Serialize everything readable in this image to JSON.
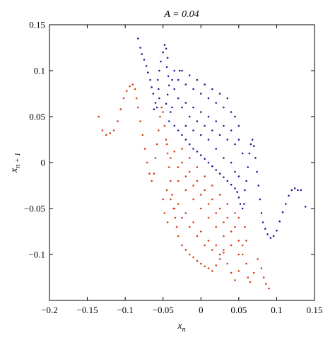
{
  "chart_data": {
    "type": "scatter",
    "title": "A = 0.04",
    "xlabel": "x_n",
    "ylabel": "x_{n+1}",
    "xlim": [
      -0.2,
      0.15
    ],
    "ylim": [
      -0.15,
      0.15
    ],
    "x_ticks": [
      -0.2,
      -0.15,
      -0.1,
      -0.05,
      0,
      0.05,
      0.1,
      0.15
    ],
    "x_tick_labels": [
      "−0.2",
      "−0.15",
      "−0.1",
      "−0.05",
      "0",
      "0.05",
      "0.1",
      "0.15"
    ],
    "y_ticks": [
      -0.1,
      -0.05,
      0,
      0.05,
      0.1,
      0.15
    ],
    "y_tick_labels": [
      "−0.1",
      "−0.05",
      "0",
      "0.05",
      "0.1",
      "0.15"
    ],
    "grid": false,
    "legend": "none",
    "series": [
      {
        "color": "#1c1c9c",
        "points": [
          [
            -0.083,
            0.135
          ],
          [
            -0.08,
            0.125
          ],
          [
            -0.078,
            0.118
          ],
          [
            -0.075,
            0.112
          ],
          [
            -0.072,
            0.105
          ],
          [
            -0.07,
            0.098
          ],
          [
            -0.067,
            0.09
          ],
          [
            -0.065,
            0.082
          ],
          [
            -0.063,
            0.075
          ],
          [
            -0.06,
            0.065
          ],
          [
            -0.058,
            0.06
          ],
          [
            -0.062,
            0.058
          ],
          [
            -0.055,
            0.07
          ],
          [
            -0.056,
            0.08
          ],
          [
            -0.057,
            0.09
          ],
          [
            -0.055,
            0.1
          ],
          [
            -0.053,
            0.11
          ],
          [
            -0.05,
            0.12
          ],
          [
            -0.048,
            0.128
          ],
          [
            -0.046,
            0.124
          ],
          [
            -0.044,
            0.114
          ],
          [
            -0.045,
            0.104
          ],
          [
            -0.043,
            0.094
          ],
          [
            -0.042,
            0.084
          ],
          [
            -0.044,
            0.074
          ],
          [
            -0.046,
            0.064
          ],
          [
            -0.04,
            0.055
          ],
          [
            -0.038,
            0.06
          ],
          [
            -0.042,
            0.045
          ],
          [
            -0.035,
            0.04
          ],
          [
            -0.03,
            0.035
          ],
          [
            -0.025,
            0.03
          ],
          [
            -0.02,
            0.025
          ],
          [
            -0.015,
            0.02
          ],
          [
            -0.01,
            0.015
          ],
          [
            -0.005,
            0.012
          ],
          [
            0.0,
            0.008
          ],
          [
            0.005,
            0.004
          ],
          [
            0.01,
            0.0
          ],
          [
            0.015,
            -0.004
          ],
          [
            0.02,
            -0.008
          ],
          [
            0.025,
            -0.012
          ],
          [
            0.03,
            -0.016
          ],
          [
            0.035,
            -0.02
          ],
          [
            0.04,
            -0.024
          ],
          [
            0.045,
            -0.028
          ],
          [
            0.048,
            -0.032
          ],
          [
            0.05,
            -0.038
          ],
          [
            0.052,
            -0.045
          ],
          [
            0.055,
            -0.05
          ],
          [
            0.057,
            -0.045
          ],
          [
            0.058,
            -0.03
          ],
          [
            0.06,
            -0.02
          ],
          [
            0.062,
            -0.005
          ],
          [
            0.064,
            0.01
          ],
          [
            0.066,
            0.02
          ],
          [
            0.068,
            0.025
          ],
          [
            0.07,
            0.018
          ],
          [
            0.072,
            0.005
          ],
          [
            0.074,
            -0.01
          ],
          [
            0.076,
            -0.025
          ],
          [
            0.078,
            -0.04
          ],
          [
            0.08,
            -0.055
          ],
          [
            0.082,
            -0.065
          ],
          [
            0.085,
            -0.072
          ],
          [
            0.088,
            -0.078
          ],
          [
            0.092,
            -0.082
          ],
          [
            0.096,
            -0.08
          ],
          [
            0.1,
            -0.074
          ],
          [
            0.104,
            -0.064
          ],
          [
            0.108,
            -0.054
          ],
          [
            0.112,
            -0.045
          ],
          [
            0.116,
            -0.036
          ],
          [
            0.12,
            -0.03
          ],
          [
            0.124,
            -0.028
          ],
          [
            0.128,
            -0.03
          ],
          [
            0.132,
            -0.03
          ],
          [
            0.138,
            -0.048
          ],
          [
            -0.035,
            0.1
          ],
          [
            -0.03,
            0.09
          ],
          [
            -0.025,
            0.1
          ],
          [
            -0.02,
            0.085
          ],
          [
            -0.015,
            0.095
          ],
          [
            -0.01,
            0.08
          ],
          [
            -0.005,
            0.09
          ],
          [
            0.0,
            0.075
          ],
          [
            0.005,
            0.085
          ],
          [
            0.01,
            0.07
          ],
          [
            0.015,
            0.08
          ],
          [
            0.02,
            0.065
          ],
          [
            0.025,
            0.075
          ],
          [
            0.03,
            0.06
          ],
          [
            0.035,
            0.07
          ],
          [
            0.04,
            0.055
          ],
          [
            0.045,
            0.05
          ],
          [
            0.05,
            0.04
          ],
          [
            -0.03,
            0.07
          ],
          [
            -0.025,
            0.06
          ],
          [
            -0.02,
            0.065
          ],
          [
            -0.015,
            0.05
          ],
          [
            -0.01,
            0.06
          ],
          [
            -0.005,
            0.045
          ],
          [
            0.0,
            0.055
          ],
          [
            0.005,
            0.04
          ],
          [
            0.01,
            0.05
          ],
          [
            0.015,
            0.035
          ],
          [
            0.02,
            0.045
          ],
          [
            0.025,
            0.03
          ],
          [
            0.03,
            0.04
          ],
          [
            0.035,
            0.025
          ],
          [
            0.04,
            0.035
          ],
          [
            0.045,
            0.02
          ],
          [
            0.05,
            0.025
          ],
          [
            0.055,
            0.01
          ],
          [
            -0.02,
            0.04
          ],
          [
            -0.01,
            0.035
          ],
          [
            0.0,
            0.03
          ],
          [
            0.01,
            0.025
          ],
          [
            0.02,
            0.015
          ],
          [
            0.03,
            0.005
          ],
          [
            0.04,
            0.0
          ],
          [
            0.045,
            -0.01
          ],
          [
            0.05,
            -0.015
          ],
          [
            -0.035,
            0.08
          ],
          [
            -0.028,
            0.1
          ],
          [
            -0.038,
            0.09
          ]
        ]
      },
      {
        "color": "#d53b12",
        "points": [
          [
            -0.135,
            0.05
          ],
          [
            -0.13,
            0.035
          ],
          [
            -0.125,
            0.03
          ],
          [
            -0.12,
            0.032
          ],
          [
            -0.115,
            0.035
          ],
          [
            -0.11,
            0.045
          ],
          [
            -0.106,
            0.058
          ],
          [
            -0.102,
            0.07
          ],
          [
            -0.098,
            0.078
          ],
          [
            -0.094,
            0.083
          ],
          [
            -0.09,
            0.085
          ],
          [
            -0.087,
            0.08
          ],
          [
            -0.085,
            0.07
          ],
          [
            -0.083,
            0.06
          ],
          [
            -0.08,
            0.045
          ],
          [
            -0.077,
            0.03
          ],
          [
            -0.074,
            0.015
          ],
          [
            -0.071,
            0.0
          ],
          [
            -0.068,
            -0.012
          ],
          [
            -0.065,
            -0.02
          ],
          [
            -0.062,
            -0.012
          ],
          [
            -0.06,
            0.005
          ],
          [
            -0.058,
            0.02
          ],
          [
            -0.056,
            0.035
          ],
          [
            -0.054,
            0.05
          ],
          [
            -0.052,
            0.06
          ],
          [
            -0.05,
            0.055
          ],
          [
            -0.048,
            0.04
          ],
          [
            -0.046,
            0.025
          ],
          [
            -0.044,
            0.01
          ],
          [
            -0.042,
            -0.005
          ],
          [
            -0.04,
            -0.02
          ],
          [
            -0.038,
            -0.035
          ],
          [
            -0.036,
            -0.05
          ],
          [
            -0.034,
            -0.06
          ],
          [
            -0.032,
            -0.07
          ],
          [
            -0.03,
            -0.08
          ],
          [
            -0.025,
            -0.09
          ],
          [
            -0.02,
            -0.095
          ],
          [
            -0.015,
            -0.1
          ],
          [
            -0.01,
            -0.103
          ],
          [
            -0.005,
            -0.107
          ],
          [
            0.0,
            -0.11
          ],
          [
            0.005,
            -0.113
          ],
          [
            0.01,
            -0.115
          ],
          [
            0.015,
            -0.118
          ],
          [
            0.02,
            -0.112
          ],
          [
            0.025,
            -0.105
          ],
          [
            0.03,
            -0.098
          ],
          [
            0.035,
            -0.11
          ],
          [
            0.04,
            -0.12
          ],
          [
            0.045,
            -0.128
          ],
          [
            0.05,
            -0.118
          ],
          [
            0.055,
            -0.1
          ],
          [
            0.06,
            -0.11
          ],
          [
            0.062,
            -0.125
          ],
          [
            0.065,
            -0.13
          ],
          [
            0.07,
            -0.12
          ],
          [
            0.075,
            -0.105
          ],
          [
            0.08,
            -0.115
          ],
          [
            0.083,
            -0.125
          ],
          [
            0.086,
            -0.132
          ],
          [
            0.09,
            -0.137
          ],
          [
            -0.045,
            0.02
          ],
          [
            -0.04,
            0.005
          ],
          [
            -0.035,
            0.012
          ],
          [
            -0.03,
            -0.005
          ],
          [
            -0.025,
            0.0
          ],
          [
            -0.02,
            -0.015
          ],
          [
            -0.015,
            -0.01
          ],
          [
            -0.01,
            -0.025
          ],
          [
            -0.005,
            -0.02
          ],
          [
            0.0,
            -0.035
          ],
          [
            0.005,
            -0.03
          ],
          [
            0.01,
            -0.045
          ],
          [
            0.015,
            -0.04
          ],
          [
            0.02,
            -0.055
          ],
          [
            0.025,
            -0.05
          ],
          [
            0.03,
            -0.065
          ],
          [
            0.035,
            -0.06
          ],
          [
            0.04,
            -0.075
          ],
          [
            0.045,
            -0.07
          ],
          [
            0.05,
            -0.085
          ],
          [
            -0.04,
            -0.04
          ],
          [
            -0.035,
            -0.05
          ],
          [
            -0.03,
            -0.045
          ],
          [
            -0.025,
            -0.06
          ],
          [
            -0.02,
            -0.055
          ],
          [
            -0.015,
            -0.07
          ],
          [
            -0.01,
            -0.065
          ],
          [
            -0.005,
            -0.08
          ],
          [
            0.0,
            -0.075
          ],
          [
            0.005,
            -0.09
          ],
          [
            0.01,
            -0.085
          ],
          [
            0.015,
            -0.095
          ],
          [
            0.02,
            -0.09
          ],
          [
            0.025,
            -0.1
          ],
          [
            0.03,
            -0.095
          ],
          [
            -0.03,
            -0.02
          ],
          [
            -0.02,
            -0.03
          ],
          [
            -0.01,
            -0.04
          ],
          [
            0.0,
            -0.05
          ],
          [
            0.01,
            -0.06
          ],
          [
            0.02,
            -0.07
          ],
          [
            0.03,
            -0.08
          ],
          [
            0.04,
            -0.09
          ],
          [
            0.05,
            -0.1
          ],
          [
            0.055,
            -0.09
          ],
          [
            -0.025,
            0.015
          ],
          [
            -0.015,
            0.005
          ],
          [
            -0.005,
            -0.005
          ],
          [
            0.005,
            -0.015
          ],
          [
            0.015,
            -0.025
          ],
          [
            0.025,
            -0.035
          ],
          [
            0.035,
            -0.045
          ],
          [
            0.045,
            -0.055
          ],
          [
            0.05,
            -0.06
          ],
          [
            -0.045,
            -0.03
          ],
          [
            -0.05,
            -0.04
          ],
          [
            -0.048,
            -0.055
          ],
          [
            -0.044,
            -0.065
          ],
          [
            0.058,
            -0.07
          ],
          [
            0.06,
            -0.085
          ]
        ]
      }
    ]
  }
}
